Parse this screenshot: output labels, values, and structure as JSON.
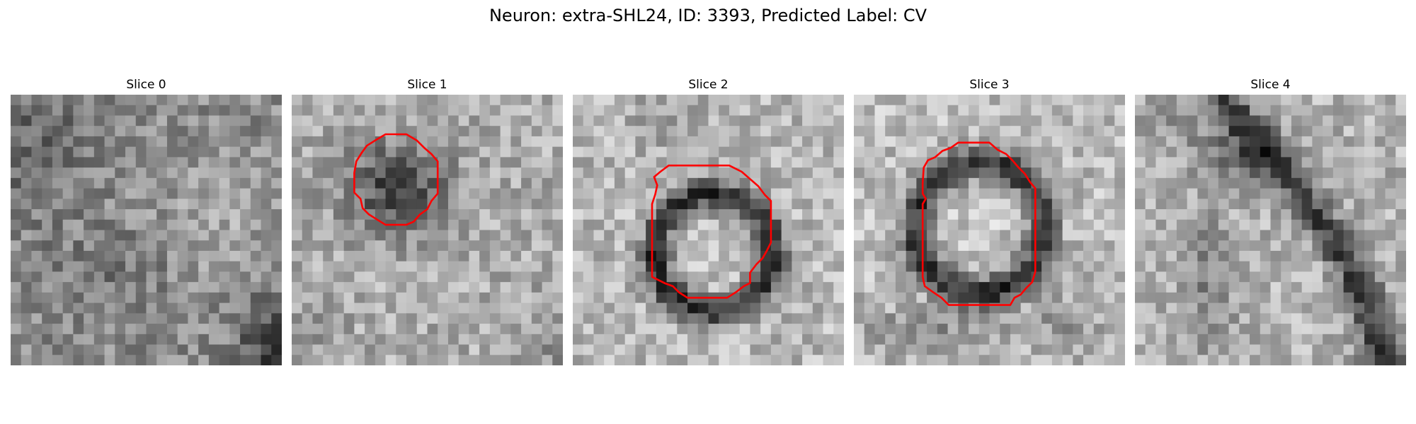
{
  "figure": {
    "title": "Neuron: extra-SHL24, ID: 3393, Predicted Label: CV"
  },
  "panels": [
    {
      "title": "Slice 0",
      "has_contour": false,
      "contour_color": "#ff0000"
    },
    {
      "title": "Slice 1",
      "has_contour": true,
      "contour_color": "#ff0000"
    },
    {
      "title": "Slice 2",
      "has_contour": true,
      "contour_color": "#ff0000"
    },
    {
      "title": "Slice 3",
      "has_contour": true,
      "contour_color": "#ff0000"
    },
    {
      "title": "Slice 4",
      "has_contour": false,
      "contour_color": "#ff0000"
    }
  ],
  "colormap": "gray"
}
